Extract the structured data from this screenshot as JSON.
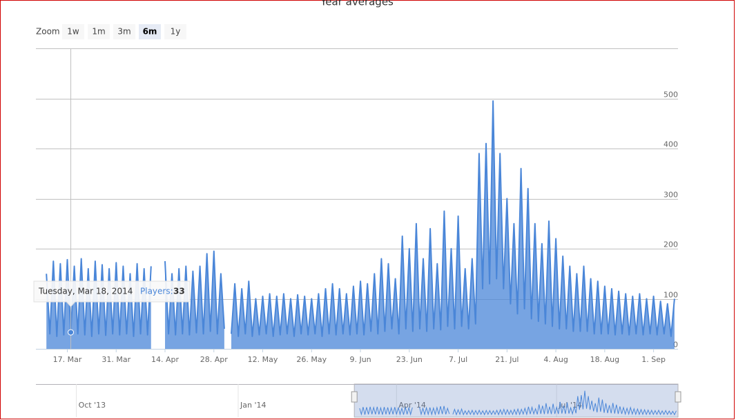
{
  "chart_data": {
    "type": "area",
    "title": "Year averages",
    "range_selector": {
      "label": "Zoom",
      "buttons": [
        "1w",
        "1m",
        "3m",
        "6m",
        "1y"
      ],
      "selected": 3
    },
    "x": [
      "2014-03-11",
      "2014-03-12",
      "2014-03-13",
      "2014-03-14",
      "2014-03-15",
      "2014-03-16",
      "2014-03-17",
      "2014-03-18",
      "2014-03-19",
      "2014-03-20",
      "2014-03-21",
      "2014-03-22",
      "2014-03-23",
      "2014-03-24",
      "2014-03-25",
      "2014-03-26",
      "2014-03-27",
      "2014-03-28",
      "2014-03-29",
      "2014-03-30",
      "2014-03-31",
      "2014-04-01",
      "2014-04-02",
      "2014-04-03",
      "2014-04-04",
      "2014-04-05",
      "2014-04-06",
      "2014-04-07",
      "2014-04-08",
      "2014-04-09",
      "2014-04-10",
      "2014-04-11",
      "2014-04-12",
      "2014-04-13",
      "2014-04-14",
      "2014-04-15",
      "2014-04-16",
      "2014-04-17",
      "2014-04-18",
      "2014-04-19",
      "2014-04-20",
      "2014-04-21",
      "2014-04-22",
      "2014-04-23",
      "2014-04-24",
      "2014-04-25",
      "2014-04-26",
      "2014-04-27",
      "2014-04-28",
      "2014-04-29",
      "2014-04-30",
      "2014-05-01",
      "2014-05-02",
      "2014-05-03",
      "2014-05-04",
      "2014-05-05",
      "2014-05-06",
      "2014-05-07",
      "2014-05-08",
      "2014-05-09",
      "2014-05-10",
      "2014-05-11",
      "2014-05-12",
      "2014-05-13",
      "2014-05-14",
      "2014-05-15",
      "2014-05-16",
      "2014-05-17",
      "2014-05-18",
      "2014-05-19",
      "2014-05-20",
      "2014-05-21",
      "2014-05-22",
      "2014-05-23",
      "2014-05-24",
      "2014-05-25",
      "2014-05-26",
      "2014-05-27",
      "2014-05-28",
      "2014-05-29",
      "2014-05-30",
      "2014-05-31",
      "2014-06-01",
      "2014-06-02",
      "2014-06-03",
      "2014-06-04",
      "2014-06-05",
      "2014-06-06",
      "2014-06-07",
      "2014-06-08",
      "2014-06-09",
      "2014-06-10",
      "2014-06-11",
      "2014-06-12",
      "2014-06-13",
      "2014-06-14",
      "2014-06-15",
      "2014-06-16",
      "2014-06-17",
      "2014-06-18",
      "2014-06-19",
      "2014-06-20",
      "2014-06-21",
      "2014-06-22",
      "2014-06-23",
      "2014-06-24",
      "2014-06-25",
      "2014-06-26",
      "2014-06-27",
      "2014-06-28",
      "2014-06-29",
      "2014-06-30",
      "2014-07-01",
      "2014-07-02",
      "2014-07-03",
      "2014-07-04",
      "2014-07-05",
      "2014-07-06",
      "2014-07-07",
      "2014-07-08",
      "2014-07-09",
      "2014-07-10",
      "2014-07-11",
      "2014-07-12",
      "2014-07-13",
      "2014-07-14",
      "2014-07-15",
      "2014-07-16",
      "2014-07-17",
      "2014-07-18",
      "2014-07-19",
      "2014-07-20",
      "2014-07-21",
      "2014-07-22",
      "2014-07-23",
      "2014-07-24",
      "2014-07-25",
      "2014-07-26",
      "2014-07-27",
      "2014-07-28",
      "2014-07-29",
      "2014-07-30",
      "2014-07-31",
      "2014-08-01",
      "2014-08-02",
      "2014-08-03",
      "2014-08-04",
      "2014-08-05",
      "2014-08-06",
      "2014-08-07",
      "2014-08-08",
      "2014-08-09",
      "2014-08-10",
      "2014-08-11",
      "2014-08-12",
      "2014-08-13",
      "2014-08-14",
      "2014-08-15",
      "2014-08-16",
      "2014-08-17",
      "2014-08-18",
      "2014-08-19",
      "2014-08-20",
      "2014-08-21",
      "2014-08-22",
      "2014-08-23",
      "2014-08-24",
      "2014-08-25",
      "2014-08-26",
      "2014-08-27",
      "2014-08-28",
      "2014-08-29",
      "2014-08-30",
      "2014-08-31",
      "2014-09-01",
      "2014-09-02",
      "2014-09-03",
      "2014-09-04",
      "2014-09-05",
      "2014-09-06",
      "2014-09-07"
    ],
    "series": [
      {
        "color": "#4a86d8",
        "values": [
          150,
          30,
          175,
          25,
          170,
          28,
          178,
          33,
          165,
          30,
          180,
          28,
          160,
          25,
          175,
          30,
          168,
          27,
          160,
          30,
          172,
          28,
          165,
          30,
          150,
          25,
          170,
          30,
          160,
          28,
          165,
          null,
          null,
          null,
          175,
          30,
          150,
          28,
          160,
          30,
          165,
          28,
          155,
          32,
          165,
          30,
          190,
          35,
          195,
          30,
          150,
          40,
          null,
          30,
          130,
          25,
          120,
          30,
          135,
          25,
          100,
          28,
          105,
          30,
          110,
          25,
          105,
          28,
          110,
          30,
          100,
          25,
          108,
          30,
          105,
          28,
          100,
          30,
          110,
          25,
          120,
          30,
          130,
          28,
          120,
          30,
          110,
          28,
          125,
          30,
          135,
          28,
          130,
          35,
          150,
          30,
          180,
          35,
          170,
          40,
          140,
          30,
          225,
          40,
          200,
          35,
          250,
          40,
          180,
          35,
          240,
          40,
          170,
          38,
          275,
          45,
          200,
          40,
          265,
          45,
          160,
          40,
          180,
          50,
          390,
          120,
          410,
          130,
          495,
          140,
          390,
          120,
          300,
          90,
          250,
          70,
          360,
          80,
          320,
          60,
          250,
          55,
          210,
          50,
          255,
          45,
          220,
          40,
          185,
          40,
          165,
          35,
          150,
          35,
          165,
          35,
          140,
          30,
          135,
          30,
          125,
          30,
          120,
          28,
          115,
          30,
          110,
          28,
          105,
          30,
          110,
          28,
          100,
          30,
          105,
          28,
          95,
          30,
          90,
          25,
          100
        ]
      }
    ],
    "xlim": [
      "2014-03-08",
      "2014-09-08"
    ],
    "xticks": [
      {
        "value": "2014-03-17",
        "label": "17. Mar"
      },
      {
        "value": "2014-03-31",
        "label": "31. Mar"
      },
      {
        "value": "2014-04-14",
        "label": "14. Apr"
      },
      {
        "value": "2014-04-28",
        "label": "28. Apr"
      },
      {
        "value": "2014-05-12",
        "label": "12. May"
      },
      {
        "value": "2014-05-26",
        "label": "26. May"
      },
      {
        "value": "2014-06-09",
        "label": "9. Jun"
      },
      {
        "value": "2014-06-23",
        "label": "23. Jun"
      },
      {
        "value": "2014-07-07",
        "label": "7. Jul"
      },
      {
        "value": "2014-07-21",
        "label": "21. Jul"
      },
      {
        "value": "2014-08-04",
        "label": "4. Aug"
      },
      {
        "value": "2014-08-18",
        "label": "18. Aug"
      },
      {
        "value": "2014-09-01",
        "label": "1. Sep"
      }
    ],
    "ylim": [
      0,
      600
    ],
    "yticks": [
      0,
      100,
      200,
      300,
      400,
      500
    ],
    "grid": true,
    "tooltip": {
      "date": "Tuesday, Mar 18, 2014",
      "label": "Players:",
      "value": 33
    },
    "navigator": {
      "xlim": [
        "2013-09-08",
        "2014-09-08"
      ],
      "xticks": [
        {
          "value": "2013-10-01",
          "label": "Oct '13"
        },
        {
          "value": "2014-01-01",
          "label": "Jan '14"
        },
        {
          "value": "2014-04-01",
          "label": "Apr '14"
        },
        {
          "value": "2014-07-01",
          "label": "Jul '14"
        }
      ]
    }
  }
}
